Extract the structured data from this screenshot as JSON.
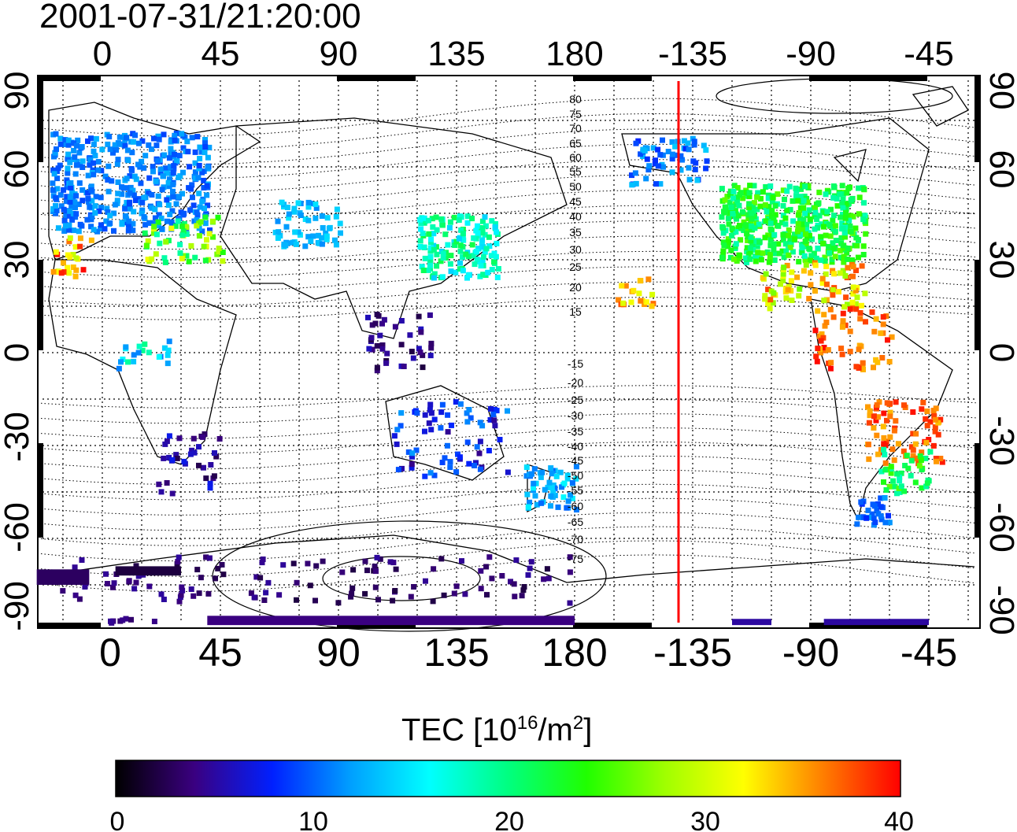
{
  "title": "2001-07-31/21:20:00",
  "map": {
    "projection": "equirectangular",
    "lon_ticks_top": [
      "0",
      "45",
      "90",
      "135",
      "180",
      "-135",
      "-90",
      "-45"
    ],
    "lon_ticks_bottom": [
      "0",
      "45",
      "90",
      "135",
      "180",
      "-135",
      "-90",
      "-45"
    ],
    "lat_ticks_left": [
      "90",
      "60",
      "30",
      "0",
      "-30",
      "-60",
      "-90"
    ],
    "lat_ticks_right": [
      "90",
      "60",
      "30",
      "0",
      "-30",
      "-60",
      "-90"
    ],
    "magnetic_lat_labels_north": [
      "80",
      "75",
      "70",
      "65",
      "60",
      "55",
      "50",
      "45",
      "40",
      "35",
      "30",
      "25",
      "20",
      "15"
    ],
    "magnetic_lat_labels_south": [
      "-15",
      "-20",
      "-25",
      "-30",
      "-35",
      "-40",
      "-45",
      "-50",
      "-55",
      "-60",
      "-65",
      "-70",
      "-75"
    ],
    "terminator_line_color": "#ff0000",
    "grid": "dotted"
  },
  "colorbar": {
    "label": "TEC [10",
    "label_exp": "16",
    "label_unit": "/m",
    "label_unit_exp": "2",
    "label_end": "]",
    "min": 0,
    "max": 40,
    "ticks": [
      "0",
      "10",
      "20",
      "30",
      "40"
    ],
    "colormap": [
      "#000000",
      "#3a0080",
      "#0020ff",
      "#00a0ff",
      "#00ffff",
      "#00ff80",
      "#20ff00",
      "#a0ff00",
      "#ffff00",
      "#ff8000",
      "#ff0000"
    ]
  }
}
